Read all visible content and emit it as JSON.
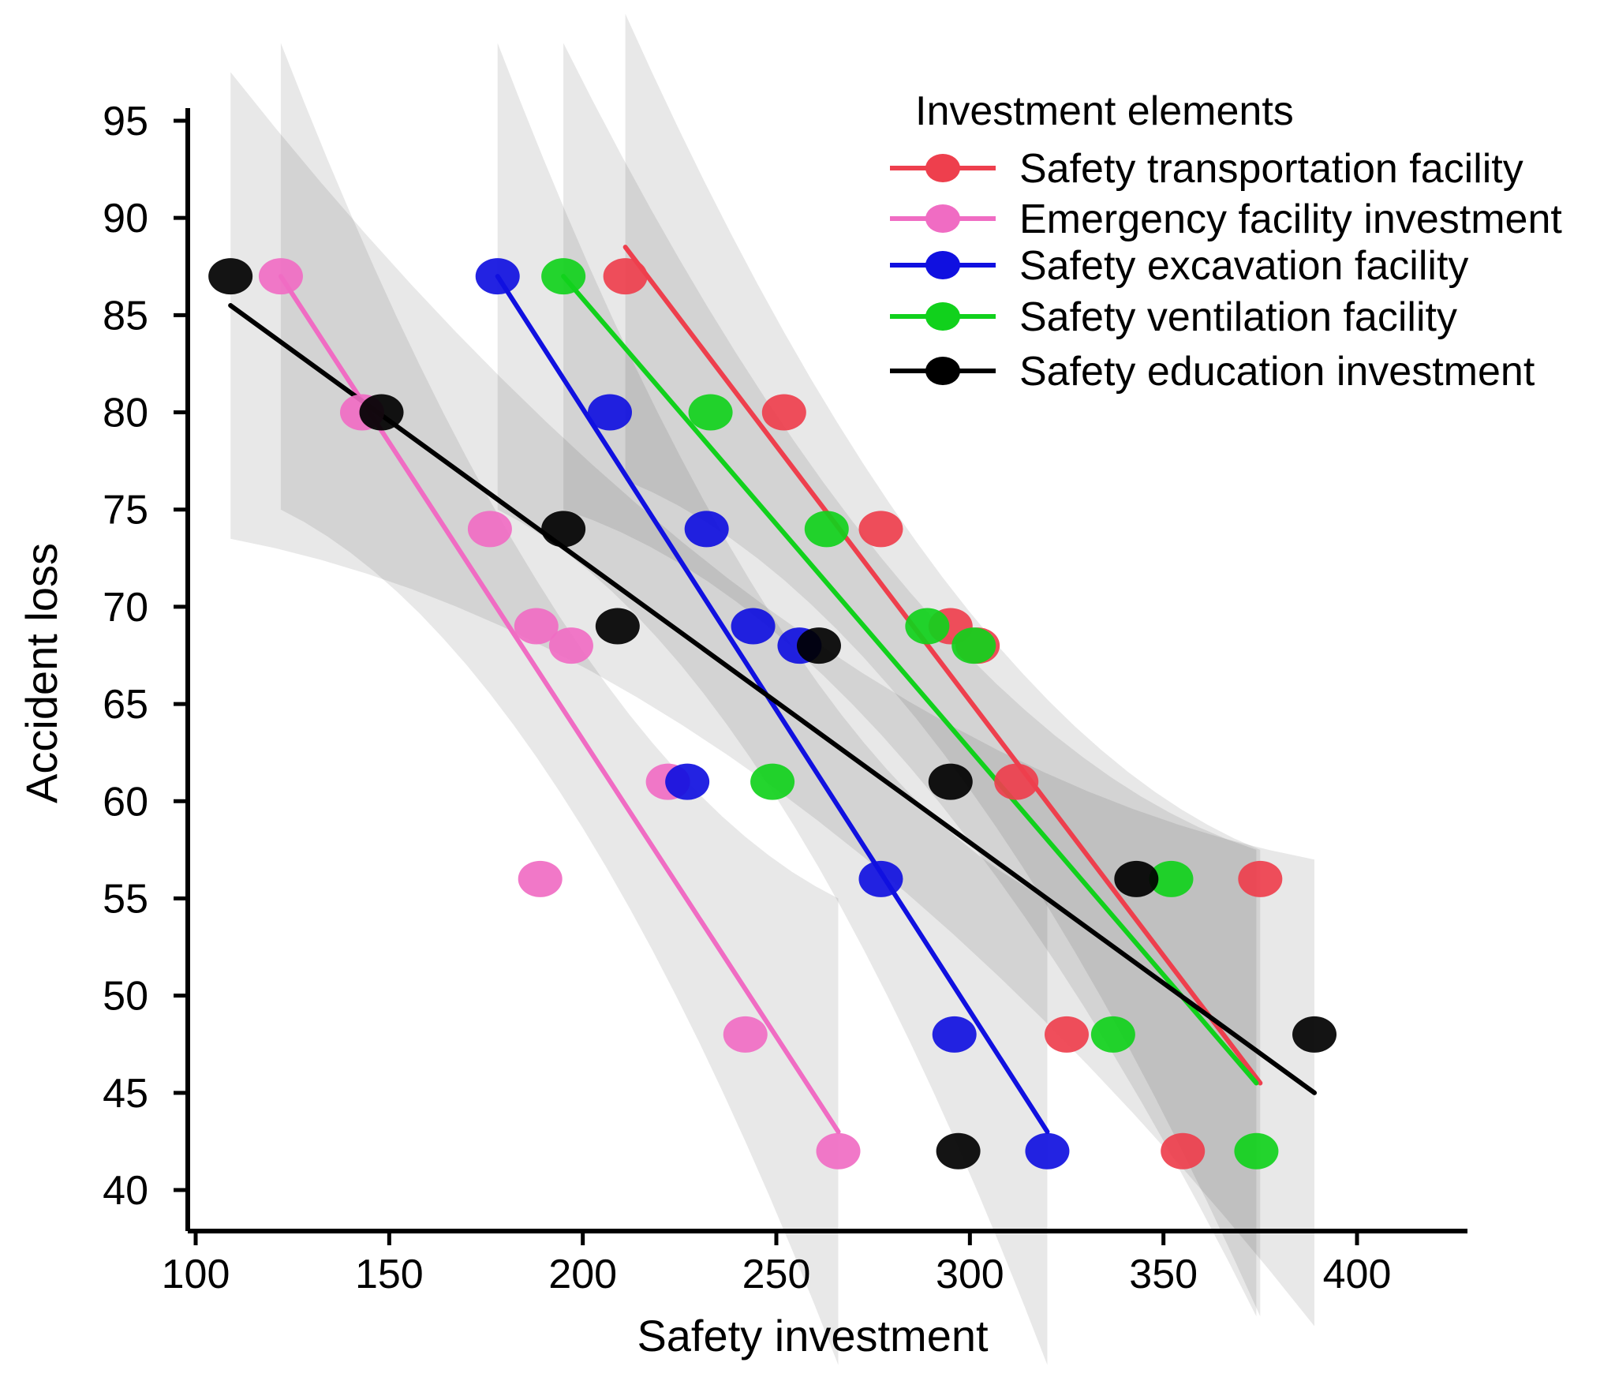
{
  "chart_data": {
    "type": "scatter",
    "title": "",
    "xlabel": "Safety investment",
    "ylabel": "Accident loss",
    "xlim": [
      100,
      430
    ],
    "ylim": [
      37,
      97
    ],
    "xticks": [
      100,
      150,
      200,
      250,
      300,
      350,
      400
    ],
    "yticks": [
      40,
      45,
      50,
      55,
      60,
      65,
      70,
      75,
      80,
      85,
      90,
      95
    ],
    "xtick_labels": [
      "100",
      "150",
      "200",
      "250",
      "300",
      "350",
      "400"
    ],
    "ytick_labels": [
      "40",
      "45",
      "50",
      "55",
      "60",
      "65",
      "70",
      "75",
      "80",
      "85",
      "90",
      "95"
    ],
    "grid": false,
    "legend": {
      "title": "Investment elements",
      "placement": "top-right"
    },
    "series": [
      {
        "name": "Safety transportation facility",
        "color": "#ee3f4d",
        "points": [
          {
            "x": 211,
            "y": 87
          },
          {
            "x": 252,
            "y": 80
          },
          {
            "x": 277,
            "y": 74
          },
          {
            "x": 295,
            "y": 69
          },
          {
            "x": 302,
            "y": 68
          },
          {
            "x": 312,
            "y": 61
          },
          {
            "x": 325,
            "y": 48
          },
          {
            "x": 355,
            "y": 42
          },
          {
            "x": 375,
            "y": 56
          }
        ],
        "fit": {
          "x1": 211,
          "y1": 88.5,
          "x2": 375,
          "y2": 45.5
        }
      },
      {
        "name": "Emergency facility investment",
        "color": "#f06cc3",
        "points": [
          {
            "x": 122,
            "y": 87
          },
          {
            "x": 143,
            "y": 80
          },
          {
            "x": 176,
            "y": 74
          },
          {
            "x": 188,
            "y": 69
          },
          {
            "x": 197,
            "y": 68
          },
          {
            "x": 222,
            "y": 61
          },
          {
            "x": 189,
            "y": 56
          },
          {
            "x": 242,
            "y": 48
          },
          {
            "x": 266,
            "y": 42
          }
        ],
        "fit": {
          "x1": 122,
          "y1": 87,
          "x2": 266,
          "y2": 43
        }
      },
      {
        "name": "Safety excavation facility",
        "color": "#1010e0",
        "points": [
          {
            "x": 178,
            "y": 87
          },
          {
            "x": 207,
            "y": 80
          },
          {
            "x": 232,
            "y": 74
          },
          {
            "x": 244,
            "y": 69
          },
          {
            "x": 256,
            "y": 68
          },
          {
            "x": 227,
            "y": 61
          },
          {
            "x": 277,
            "y": 56
          },
          {
            "x": 296,
            "y": 48
          },
          {
            "x": 320,
            "y": 42
          }
        ],
        "fit": {
          "x1": 178,
          "y1": 87,
          "x2": 320,
          "y2": 43
        }
      },
      {
        "name": "Safety ventilation facility",
        "color": "#11d11c",
        "points": [
          {
            "x": 195,
            "y": 87
          },
          {
            "x": 233,
            "y": 80
          },
          {
            "x": 263,
            "y": 74
          },
          {
            "x": 289,
            "y": 69
          },
          {
            "x": 301,
            "y": 68
          },
          {
            "x": 249,
            "y": 61
          },
          {
            "x": 352,
            "y": 56
          },
          {
            "x": 337,
            "y": 48
          },
          {
            "x": 374,
            "y": 42
          }
        ],
        "fit": {
          "x1": 195,
          "y1": 87,
          "x2": 374,
          "y2": 45.5
        }
      },
      {
        "name": "Safety education investment",
        "color": "#000000",
        "points": [
          {
            "x": 109,
            "y": 87
          },
          {
            "x": 148,
            "y": 80
          },
          {
            "x": 195,
            "y": 74
          },
          {
            "x": 209,
            "y": 69
          },
          {
            "x": 261,
            "y": 68
          },
          {
            "x": 295,
            "y": 61
          },
          {
            "x": 343,
            "y": 56
          },
          {
            "x": 297,
            "y": 42
          },
          {
            "x": 389,
            "y": 48
          }
        ],
        "fit": {
          "x1": 109,
          "y1": 85.5,
          "x2": 389,
          "y2": 45
        }
      }
    ]
  }
}
